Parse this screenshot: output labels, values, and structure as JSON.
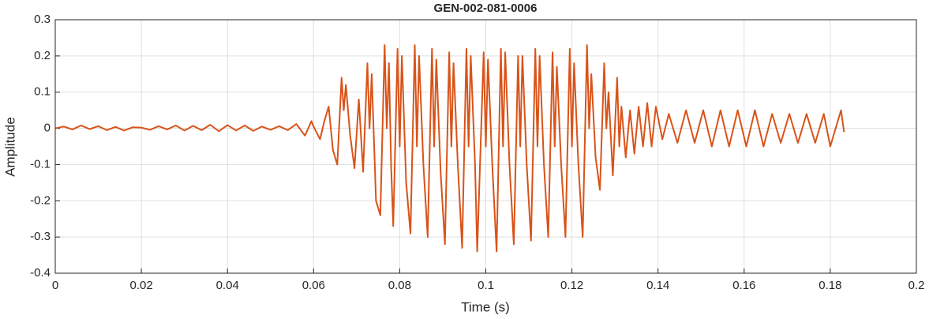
{
  "chart_data": {
    "type": "line",
    "title": "GEN-002-081-0006",
    "x_label": "Time (s)",
    "y_label": "Amplitude",
    "x": [
      0,
      0.002,
      0.004,
      0.006,
      0.008,
      0.01,
      0.012,
      0.014,
      0.016,
      0.018,
      0.02,
      0.022,
      0.024,
      0.026,
      0.028,
      0.03,
      0.032,
      0.034,
      0.036,
      0.038,
      0.04,
      0.042,
      0.044,
      0.046,
      0.048,
      0.05,
      0.052,
      0.054,
      0.056,
      0.058,
      0.0595,
      0.06,
      0.0615,
      0.0625,
      0.0635,
      0.0645,
      0.0655,
      0.0665,
      0.067,
      0.0675,
      0.0685,
      0.0695,
      0.0705,
      0.0715,
      0.0725,
      0.073,
      0.0735,
      0.0745,
      0.0755,
      0.0765,
      0.077,
      0.0775,
      0.078,
      0.0785,
      0.0795,
      0.08,
      0.0805,
      0.0815,
      0.0825,
      0.0835,
      0.084,
      0.0845,
      0.0855,
      0.0865,
      0.0875,
      0.088,
      0.0885,
      0.0895,
      0.0905,
      0.0915,
      0.092,
      0.0925,
      0.0935,
      0.0945,
      0.0955,
      0.096,
      0.0965,
      0.0975,
      0.098,
      0.0995,
      0.1,
      0.1005,
      0.1015,
      0.1025,
      0.1035,
      0.104,
      0.1045,
      0.1055,
      0.1065,
      0.1075,
      0.108,
      0.1085,
      0.1095,
      0.1105,
      0.1115,
      0.112,
      0.1125,
      0.1135,
      0.1145,
      0.1155,
      0.116,
      0.1165,
      0.1175,
      0.1185,
      0.1195,
      0.12,
      0.1205,
      0.1215,
      0.1225,
      0.1235,
      0.124,
      0.1245,
      0.1255,
      0.1265,
      0.1275,
      0.128,
      0.1285,
      0.1295,
      0.1305,
      0.131,
      0.1315,
      0.1325,
      0.1335,
      0.1345,
      0.1355,
      0.1365,
      0.1375,
      0.1385,
      0.1395,
      0.141,
      0.1425,
      0.1445,
      0.1465,
      0.1485,
      0.1505,
      0.1525,
      0.1545,
      0.1565,
      0.1585,
      0.1605,
      0.1625,
      0.1645,
      0.1665,
      0.1685,
      0.1705,
      0.1725,
      0.1745,
      0.1765,
      0.1785,
      0.18,
      0.1825,
      0.1832
    ],
    "series": [
      {
        "name": "Amplitude",
        "color": "#d95319",
        "values": [
          0,
          0.005,
          -0.003,
          0.008,
          -0.002,
          0.006,
          -0.005,
          0.004,
          -0.006,
          0.003,
          0.002,
          -0.004,
          0.006,
          -0.003,
          0.008,
          -0.006,
          0.007,
          -0.005,
          0.01,
          -0.008,
          0.009,
          -0.006,
          0.008,
          -0.007,
          0.005,
          -0.004,
          0.006,
          -0.005,
          0.012,
          -0.02,
          0.02,
          0.005,
          -0.03,
          0.02,
          0.06,
          -0.06,
          -0.1,
          0.14,
          0.05,
          0.12,
          -0.02,
          -0.11,
          0.08,
          -0.12,
          0.18,
          0,
          0.15,
          -0.2,
          -0.24,
          0.23,
          0,
          0.18,
          -0.1,
          -0.27,
          0.22,
          -0.05,
          0.2,
          -0.15,
          -0.29,
          0.23,
          -0.05,
          0.2,
          -0.1,
          -0.3,
          0.22,
          -0.05,
          0.19,
          -0.12,
          -0.32,
          0.21,
          -0.05,
          0.18,
          -0.1,
          -0.33,
          0.22,
          -0.05,
          0.2,
          -0.1,
          -0.34,
          0.21,
          -0.05,
          0.19,
          -0.1,
          -0.34,
          0.22,
          -0.05,
          0.21,
          -0.1,
          -0.32,
          0.2,
          -0.05,
          0.2,
          -0.1,
          -0.31,
          0.22,
          -0.05,
          0.2,
          -0.1,
          -0.3,
          0.21,
          -0.05,
          0.17,
          -0.1,
          -0.3,
          0.22,
          -0.05,
          0.18,
          -0.1,
          -0.3,
          0.23,
          0,
          0.15,
          -0.08,
          -0.17,
          0.18,
          0,
          0.1,
          -0.13,
          0.14,
          -0.05,
          0.06,
          -0.08,
          0.05,
          -0.07,
          0.06,
          -0.05,
          0.07,
          -0.05,
          0.06,
          -0.03,
          0.04,
          -0.04,
          0.05,
          -0.04,
          0.05,
          -0.05,
          0.05,
          -0.05,
          0.05,
          -0.05,
          0.05,
          -0.05,
          0.04,
          -0.04,
          0.04,
          -0.04,
          0.04,
          -0.04,
          0.04,
          -0.05,
          0.05,
          -0.01
        ]
      }
    ],
    "xlim": [
      0,
      0.2
    ],
    "xticks": [
      0,
      0.02,
      0.04,
      0.06,
      0.08,
      0.1,
      0.12,
      0.14,
      0.16,
      0.18,
      0.2
    ],
    "ylim": [
      -0.4,
      0.3
    ],
    "yticks": [
      -0.4,
      -0.3,
      -0.2,
      -0.1,
      0,
      0.1,
      0.2,
      0.3
    ],
    "grid": true
  }
}
